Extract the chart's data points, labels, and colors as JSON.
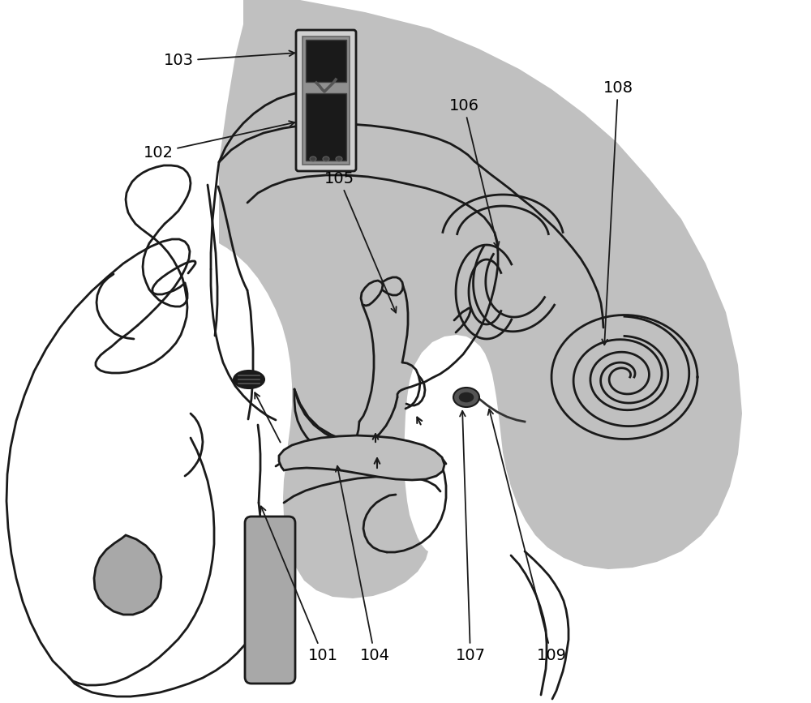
{
  "background_color": "#ffffff",
  "gray_fill": "#c0c0c0",
  "dark_gray": "#3a3a3a",
  "mid_gray": "#707070",
  "light_gray": "#a8a8a8",
  "black": "#1a1a1a",
  "white": "#ffffff",
  "line_width": 2.0,
  "font_size": 14,
  "figsize": [
    10.0,
    8.67
  ],
  "dpi": 100
}
